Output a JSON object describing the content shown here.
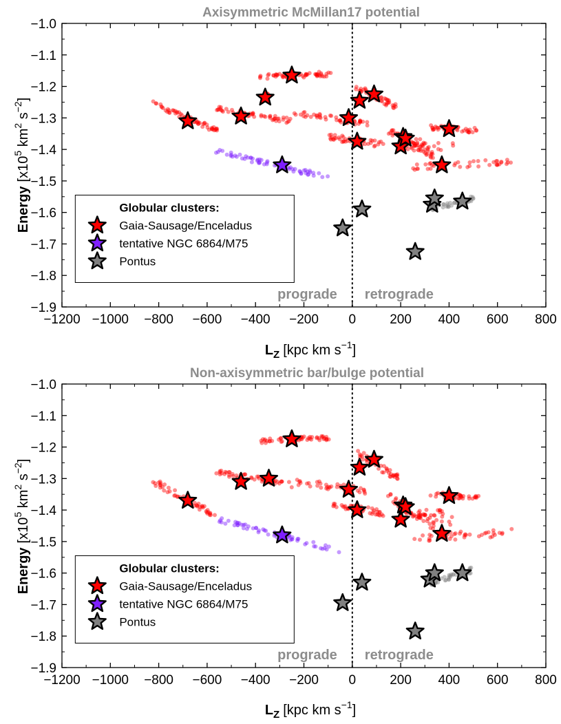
{
  "colors": {
    "gse": "#ff0000",
    "ngc": "#7f1fff",
    "pontus": "#808080",
    "region_label": "#8c8c8c",
    "title": "#8c8c8c"
  },
  "icons": {
    "cluster_marker": "star-icon"
  },
  "chart_data": [
    {
      "type": "scatter",
      "title": "Axisymmetric McMillan17 potential",
      "xlabel_main": "L",
      "xlabel_sub": "Z",
      "xlabel_units": "[kpc km s",
      "xlabel_exp": "−1",
      "xlabel_close": "]",
      "ylabel_main": "Energy",
      "ylabel_units": "[x10",
      "ylabel_exp1": "5",
      "ylabel_mid": " km",
      "ylabel_exp2": "2",
      "ylabel_mid2": " s",
      "ylabel_exp3": "−2",
      "ylabel_close": "]",
      "xlim": [
        -1200,
        800
      ],
      "ylim": [
        -1.9,
        -1.0
      ],
      "xticks": [
        -1200,
        -1000,
        -800,
        -600,
        -400,
        -200,
        0,
        200,
        400,
        600,
        800
      ],
      "xtick_labels": [
        "−1200",
        "−1000",
        "−800",
        "−600",
        "−400",
        "−200",
        "0",
        "200",
        "400",
        "600",
        "800"
      ],
      "yticks": [
        -1.0,
        -1.1,
        -1.2,
        -1.3,
        -1.4,
        -1.5,
        -1.6,
        -1.7,
        -1.8,
        -1.9
      ],
      "ytick_labels": [
        "−1.0",
        "−1.1",
        "−1.2",
        "−1.3",
        "−1.4",
        "−1.5",
        "−1.6",
        "−1.7",
        "−1.8",
        "−1.9"
      ],
      "vline_x": 0,
      "region_labels": {
        "left": "prograde",
        "right": "retrograde"
      },
      "legend": {
        "title": "Globular clusters:",
        "placement": "lower-left",
        "entries": [
          "Gaia-Sausage/Enceladus",
          "tentative NGC 6864/M75",
          "Pontus"
        ]
      },
      "series": [
        {
          "name": "Gaia-Sausage/Enceladus",
          "color": "#ff0000",
          "stars": [
            [
              -250,
              -1.165
            ],
            [
              -360,
              -1.235
            ],
            [
              -680,
              -1.31
            ],
            [
              -460,
              -1.295
            ],
            [
              -15,
              -1.3
            ],
            [
              30,
              -1.245
            ],
            [
              90,
              -1.225
            ],
            [
              20,
              -1.375
            ],
            [
              210,
              -1.36
            ],
            [
              200,
              -1.39
            ],
            [
              220,
              -1.365
            ],
            [
              400,
              -1.335
            ],
            [
              370,
              -1.45
            ]
          ],
          "clouds": [
            {
              "x": [
                -380,
                -90
              ],
              "y": [
                -1.17,
                -1.16
              ],
              "n": 55,
              "spread": 0.008
            },
            {
              "x": [
                -380,
                -340
              ],
              "y": [
                -1.245,
                -1.22
              ],
              "n": 10,
              "spread": 0.01
            },
            {
              "x": [
                -820,
                -560
              ],
              "y": [
                -1.255,
                -1.34
              ],
              "n": 55,
              "spread": 0.008
            },
            {
              "x": [
                -560,
                -250
              ],
              "y": [
                -1.27,
                -1.31
              ],
              "n": 55,
              "spread": 0.008
            },
            {
              "x": [
                -240,
                60
              ],
              "y": [
                -1.285,
                -1.32
              ],
              "n": 45,
              "spread": 0.01
            },
            {
              "x": [
                20,
                190
              ],
              "y": [
                -1.2,
                -1.27
              ],
              "n": 45,
              "spread": 0.01
            },
            {
              "x": [
                -100,
                130
              ],
              "y": [
                -1.36,
                -1.385
              ],
              "n": 40,
              "spread": 0.01
            },
            {
              "x": [
                150,
                340
              ],
              "y": [
                -1.34,
                -1.42
              ],
              "n": 50,
              "spread": 0.012
            },
            {
              "x": [
                320,
                520
              ],
              "y": [
                -1.33,
                -1.34
              ],
              "n": 40,
              "spread": 0.008
            },
            {
              "x": [
                250,
                670
              ],
              "y": [
                -1.455,
                -1.44
              ],
              "n": 40,
              "spread": 0.01
            },
            {
              "x": [
                200,
                420
              ],
              "y": [
                -1.38,
                -1.4
              ],
              "n": 25,
              "spread": 0.02
            }
          ]
        },
        {
          "name": "tentative NGC 6864/M75",
          "color": "#7f1fff",
          "stars": [
            [
              -290,
              -1.45
            ]
          ],
          "clouds": [
            {
              "x": [
                -560,
                -100
              ],
              "y": [
                -1.405,
                -1.49
              ],
              "n": 60,
              "spread": 0.008
            }
          ]
        },
        {
          "name": "Pontus",
          "color": "#808080",
          "stars": [
            [
              40,
              -1.59
            ],
            [
              -40,
              -1.65
            ],
            [
              330,
              -1.575
            ],
            [
              340,
              -1.555
            ],
            [
              455,
              -1.565
            ],
            [
              260,
              -1.725
            ]
          ],
          "clouds": [
            {
              "x": [
                320,
                500
              ],
              "y": [
                -1.59,
                -1.555
              ],
              "n": 45,
              "spread": 0.008
            }
          ]
        }
      ]
    },
    {
      "type": "scatter",
      "title": "Non-axisymmetric bar/bulge potential",
      "xlabel_main": "L",
      "xlabel_sub": "Z",
      "xlabel_units": "[kpc km s",
      "xlabel_exp": "−1",
      "xlabel_close": "]",
      "ylabel_main": "Energy",
      "ylabel_units": "[x10",
      "ylabel_exp1": "5",
      "ylabel_mid": " km",
      "ylabel_exp2": "2",
      "ylabel_mid2": " s",
      "ylabel_exp3": "−2",
      "ylabel_close": "]",
      "xlim": [
        -1200,
        800
      ],
      "ylim": [
        -1.9,
        -1.0
      ],
      "xticks": [
        -1200,
        -1000,
        -800,
        -600,
        -400,
        -200,
        0,
        200,
        400,
        600,
        800
      ],
      "xtick_labels": [
        "−1200",
        "−1000",
        "−800",
        "−600",
        "−400",
        "−200",
        "0",
        "200",
        "400",
        "600",
        "800"
      ],
      "yticks": [
        -1.0,
        -1.1,
        -1.2,
        -1.3,
        -1.4,
        -1.5,
        -1.6,
        -1.7,
        -1.8,
        -1.9
      ],
      "ytick_labels": [
        "−1.0",
        "−1.1",
        "−1.2",
        "−1.3",
        "−1.4",
        "−1.5",
        "−1.6",
        "−1.7",
        "−1.8",
        "−1.9"
      ],
      "vline_x": 0,
      "region_labels": {
        "left": "prograde",
        "right": "retrograde"
      },
      "legend": {
        "title": "Globular clusters:",
        "placement": "lower-left",
        "entries": [
          "Gaia-Sausage/Enceladus",
          "tentative NGC 6864/M75",
          "Pontus"
        ]
      },
      "series": [
        {
          "name": "Gaia-Sausage/Enceladus",
          "color": "#ff0000",
          "stars": [
            [
              -250,
              -1.175
            ],
            [
              -345,
              -1.3
            ],
            [
              -680,
              -1.37
            ],
            [
              -460,
              -1.31
            ],
            [
              -15,
              -1.335
            ],
            [
              30,
              -1.265
            ],
            [
              90,
              -1.24
            ],
            [
              20,
              -1.4
            ],
            [
              210,
              -1.385
            ],
            [
              200,
              -1.43
            ],
            [
              220,
              -1.39
            ],
            [
              400,
              -1.355
            ],
            [
              370,
              -1.475
            ]
          ],
          "clouds": [
            {
              "x": [
                -380,
                -90
              ],
              "y": [
                -1.18,
                -1.17
              ],
              "n": 55,
              "spread": 0.008
            },
            {
              "x": [
                -820,
                -560
              ],
              "y": [
                -1.31,
                -1.42
              ],
              "n": 55,
              "spread": 0.01
            },
            {
              "x": [
                -560,
                -250
              ],
              "y": [
                -1.28,
                -1.32
              ],
              "n": 55,
              "spread": 0.008
            },
            {
              "x": [
                -240,
                60
              ],
              "y": [
                -1.31,
                -1.34
              ],
              "n": 45,
              "spread": 0.012
            },
            {
              "x": [
                20,
                190
              ],
              "y": [
                -1.22,
                -1.3
              ],
              "n": 45,
              "spread": 0.012
            },
            {
              "x": [
                -100,
                130
              ],
              "y": [
                -1.38,
                -1.41
              ],
              "n": 40,
              "spread": 0.01
            },
            {
              "x": [
                150,
                340
              ],
              "y": [
                -1.36,
                -1.45
              ],
              "n": 50,
              "spread": 0.015
            },
            {
              "x": [
                320,
                520
              ],
              "y": [
                -1.35,
                -1.36
              ],
              "n": 40,
              "spread": 0.008
            },
            {
              "x": [
                250,
                670
              ],
              "y": [
                -1.49,
                -1.47
              ],
              "n": 40,
              "spread": 0.012
            },
            {
              "x": [
                200,
                420
              ],
              "y": [
                -1.39,
                -1.43
              ],
              "n": 25,
              "spread": 0.02
            }
          ]
        },
        {
          "name": "tentative NGC 6864/M75",
          "color": "#7f1fff",
          "stars": [
            [
              -290,
              -1.48
            ]
          ],
          "clouds": [
            {
              "x": [
                -560,
                -50
              ],
              "y": [
                -1.43,
                -1.53
              ],
              "n": 60,
              "spread": 0.008
            }
          ]
        },
        {
          "name": "Pontus",
          "color": "#808080",
          "stars": [
            [
              40,
              -1.63
            ],
            [
              -40,
              -1.695
            ],
            [
              320,
              -1.62
            ],
            [
              340,
              -1.6
            ],
            [
              455,
              -1.6
            ],
            [
              260,
              -1.785
            ]
          ],
          "clouds": [
            {
              "x": [
                320,
                500
              ],
              "y": [
                -1.635,
                -1.59
              ],
              "n": 45,
              "spread": 0.01
            }
          ]
        }
      ]
    }
  ]
}
